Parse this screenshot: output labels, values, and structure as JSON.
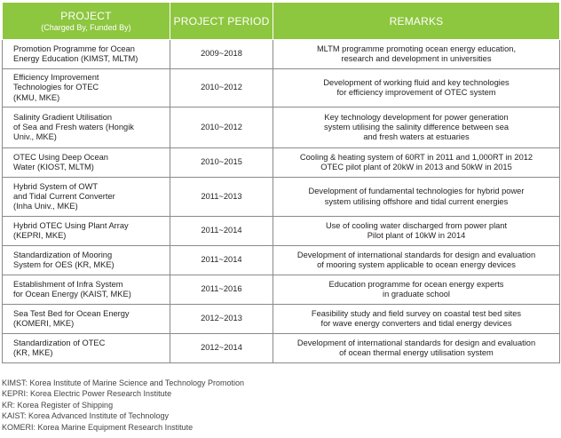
{
  "table": {
    "headers": {
      "project": "PROJECT",
      "project_sub": "(Charged By, Funded By)",
      "period": "PROJECT PERIOD",
      "remarks": "REMARKS"
    },
    "rows": [
      {
        "project": [
          "Promotion Programme for Ocean",
          "Energy Education (KIMST, MLTM)"
        ],
        "period": "2009~2018",
        "remarks": [
          "MLTM programme promoting ocean energy education,",
          "research and development in universities"
        ]
      },
      {
        "project": [
          "Efficiency Improvement",
          "Technologies for OTEC",
          "(KMU, MKE)"
        ],
        "period": "2010~2012",
        "remarks": [
          "Development of working fluid and key technologies",
          "for efficiency improvement of OTEC system"
        ]
      },
      {
        "project": [
          "Salinity Gradient Utilisation",
          "of Sea and Fresh waters (Hongik",
          "Univ., MKE)"
        ],
        "period": "2010~2012",
        "remarks": [
          "Key technology development for power generation",
          "system utilising the salinity difference between sea",
          "and fresh waters at estuaries"
        ]
      },
      {
        "project": [
          "OTEC Using Deep Ocean",
          "Water (KIOST, MLTM)"
        ],
        "period": "2010~2015",
        "remarks": [
          "Cooling & heating system of 60RT in 2011 and 1,000RT in 2012",
          "OTEC pilot plant of 20kW in 2013 and 50kW in 2015"
        ]
      },
      {
        "project": [
          "Hybrid System of OWT",
          "and Tidal Current Converter",
          "(Inha Univ., MKE)"
        ],
        "period": "2011~2013",
        "remarks": [
          "Development of fundamental technologies for hybrid power",
          "system utilising offshore and tidal current energies"
        ]
      },
      {
        "project": [
          "Hybrid OTEC Using Plant Array",
          "(KEPRI, MKE)"
        ],
        "period": "2011~2014",
        "remarks": [
          "Use of cooling water discharged from power plant",
          "Pilot plant of 10kW in 2014"
        ]
      },
      {
        "project": [
          "Standardization of Mooring",
          "System for OES (KR, MKE)"
        ],
        "period": "2011~2014",
        "remarks": [
          "Development of international standards for design and evaluation",
          "of mooring system applicable to ocean energy devices"
        ]
      },
      {
        "project": [
          "Establishment of Infra System",
          "for Ocean Energy (KAIST, MKE)"
        ],
        "period": "2011~2016",
        "remarks": [
          "Education programme for ocean energy experts",
          "in graduate school"
        ]
      },
      {
        "project": [
          "Sea Test Bed for Ocean Energy",
          "(KOMERI, MKE)"
        ],
        "period": "2012~2013",
        "remarks": [
          "Feasibility study and field survey on coastal test bed sites",
          "for wave energy converters and tidal energy devices"
        ]
      },
      {
        "project": [
          "Standardization of OTEC",
          "(KR, MKE)"
        ],
        "period": "2012~2014",
        "remarks": [
          "Development of international standards for design and evaluation",
          "of ocean thermal energy utilisation system"
        ]
      }
    ]
  },
  "footnotes": [
    "KIMST: Korea Institute of Marine Science and Technology Promotion",
    "KEPRI: Korea Electric Power Research Institute",
    "KR: Korea Register of Shipping",
    "KAIST: Korea Advanced Institute of Technology",
    "KOMERI: Korea Marine Equipment Research Institute"
  ],
  "colors": {
    "header_bg": "#8dc63f",
    "header_text": "#ffffff",
    "border": "#8a8a8a"
  }
}
